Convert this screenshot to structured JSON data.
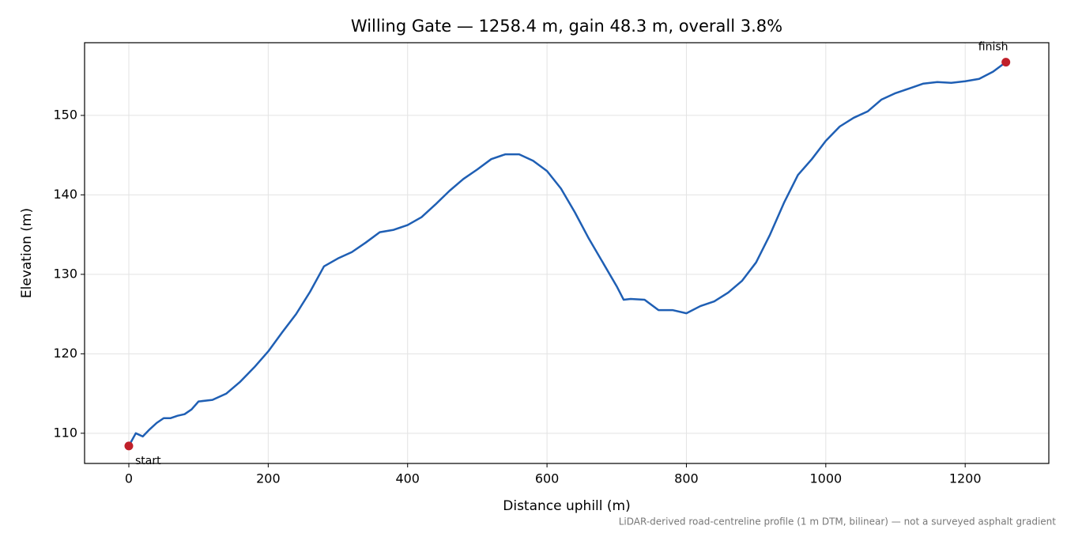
{
  "chart_data": {
    "type": "line",
    "title": "Willing Gate — 1258.4 m, gain 48.3 m, overall 3.8%",
    "x_label": "Distance uphill (m)",
    "y_label": "Elevation (m)",
    "footnote": "LiDAR-derived road-centreline profile (1 m DTM, bilinear) — not a surveyed asphalt gradient",
    "x": [
      0,
      10,
      20,
      30,
      40,
      50,
      60,
      70,
      80,
      90,
      100,
      120,
      140,
      160,
      180,
      200,
      220,
      240,
      260,
      280,
      300,
      320,
      340,
      360,
      380,
      400,
      420,
      440,
      460,
      480,
      500,
      520,
      540,
      560,
      580,
      600,
      620,
      640,
      660,
      680,
      700,
      710,
      720,
      740,
      760,
      780,
      800,
      820,
      840,
      860,
      880,
      900,
      920,
      940,
      960,
      980,
      1000,
      1020,
      1040,
      1060,
      1080,
      1100,
      1120,
      1140,
      1160,
      1180,
      1200,
      1220,
      1240,
      1258.4
    ],
    "series": [
      {
        "name": "Elevation",
        "color": "#1f5fb4",
        "values": [
          108.4,
          110.0,
          109.6,
          110.5,
          111.3,
          111.9,
          111.9,
          112.2,
          112.4,
          113.0,
          114.0,
          114.2,
          115.0,
          116.5,
          118.3,
          120.3,
          122.7,
          125.0,
          127.8,
          131.0,
          132.0,
          132.8,
          134.0,
          135.3,
          135.6,
          136.2,
          137.2,
          138.8,
          140.5,
          142.0,
          143.2,
          144.5,
          145.1,
          145.1,
          144.3,
          143.0,
          140.8,
          137.8,
          134.5,
          131.5,
          128.5,
          126.8,
          126.9,
          126.8,
          125.5,
          125.5,
          125.1,
          126.0,
          126.6,
          127.7,
          129.2,
          131.5,
          135.0,
          139.0,
          142.5,
          144.5,
          146.8,
          148.6,
          149.7,
          150.5,
          152.0,
          152.8,
          153.4,
          154.0,
          154.2,
          154.1,
          154.3,
          154.6,
          155.5,
          156.7
        ]
      }
    ],
    "endpoints": {
      "color": "#c0202a",
      "labels": [
        "start",
        "finish"
      ],
      "x": [
        0,
        1258.4
      ],
      "values": [
        108.4,
        156.7
      ]
    },
    "xlim": [
      -63.5,
      1320
    ],
    "ylim": [
      106.2,
      159.15
    ],
    "xticks": [
      0,
      200,
      400,
      600,
      800,
      1000,
      1200
    ],
    "yticks": [
      110,
      120,
      130,
      140,
      150
    ],
    "grid": true
  }
}
